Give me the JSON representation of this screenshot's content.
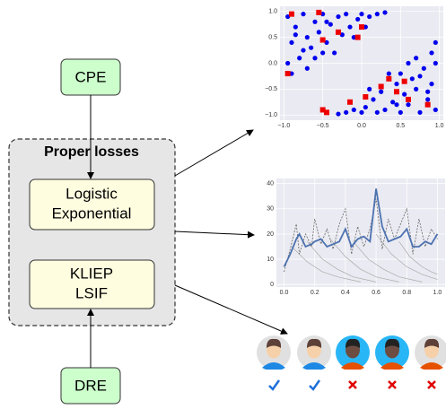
{
  "nodes": {
    "cpe": "CPE",
    "dre": "DRE",
    "group": "Proper losses",
    "cpe_losses": [
      "Logistic",
      "Exponential"
    ],
    "dre_losses": [
      "KLIEP",
      "LSIF"
    ]
  },
  "chart_data": [
    {
      "type": "scatter",
      "xlim": [
        -1.05,
        1.05
      ],
      "ylim": [
        -1.1,
        1.1
      ],
      "xticks": [
        {
          "value": -1,
          "label": "−1.0"
        },
        {
          "value": -0.5,
          "label": "−0.5"
        },
        {
          "value": 0,
          "label": "0.0"
        },
        {
          "value": 0.5,
          "label": "0.5"
        },
        {
          "value": 1,
          "label": "1.0"
        }
      ],
      "yticks": [
        {
          "value": 1,
          "label": "1.0"
        },
        {
          "value": 0.5,
          "label": "0.5"
        },
        {
          "value": 0,
          "label": "0.0"
        },
        {
          "value": -0.5,
          "label": "−0.5"
        },
        {
          "value": -1,
          "label": "−1.0"
        }
      ],
      "grid": true,
      "series": [
        {
          "color": "#0000ee",
          "marker": "circle",
          "x": [
            -0.95,
            -0.85,
            -0.9,
            -0.75,
            -0.7,
            -0.6,
            -0.65,
            -0.55,
            -0.5,
            -0.45,
            -0.4,
            -0.35,
            -0.3,
            -0.25,
            -0.2,
            -0.15,
            -0.1,
            -0.05,
            0.0,
            0.05,
            0.1,
            0.2,
            0.3,
            -0.8,
            -0.95,
            -0.9,
            -0.7,
            -0.6,
            -0.85,
            -0.75,
            -0.5,
            -0.45,
            0.95,
            0.85,
            0.9,
            0.75,
            0.7,
            0.6,
            0.65,
            0.55,
            0.5,
            0.45,
            0.4,
            0.35,
            0.3,
            0.25,
            0.2,
            0.15,
            0.1,
            0.05,
            0.0,
            -0.1,
            -0.2,
            -0.3,
            0.8,
            0.95,
            0.9,
            0.7,
            0.6,
            0.85,
            0.75,
            0.5,
            0.45,
            0.95
          ],
          "values": [
            0.9,
            0.7,
            0.4,
            0.95,
            0.5,
            0.8,
            0.3,
            0.6,
            0.95,
            0.4,
            0.75,
            0.2,
            0.9,
            0.55,
            0.95,
            0.7,
            0.5,
            0.85,
            0.95,
            0.7,
            0.9,
            0.95,
            0.98,
            0.1,
            0.0,
            -0.2,
            -0.1,
            0.1,
            0.55,
            0.25,
            0.2,
            0.8,
            -0.9,
            -0.7,
            -0.4,
            -0.95,
            -0.5,
            -0.8,
            -0.3,
            -0.6,
            -0.95,
            -0.4,
            -0.75,
            -0.2,
            -0.9,
            -0.55,
            -0.95,
            -0.7,
            -0.5,
            -0.85,
            -0.95,
            -0.9,
            -0.95,
            -0.98,
            -0.1,
            0.0,
            0.2,
            0.1,
            0.0,
            -0.55,
            -0.25,
            -0.2,
            -0.8,
            0.4
          ]
        },
        {
          "color": "#ee0000",
          "marker": "square",
          "x": [
            -0.55,
            -0.5,
            -0.3,
            -0.05,
            -0.95,
            -0.9,
            0.0,
            0.35,
            0.45,
            0.25,
            -0.15,
            -0.45,
            0.6,
            0.85,
            0.55,
            0.05,
            -0.5
          ],
          "values": [
            0.98,
            0.45,
            0.6,
            0.5,
            -0.2,
            0.95,
            0.7,
            -0.3,
            -0.55,
            -0.45,
            -0.75,
            -0.95,
            -0.7,
            -0.8,
            -0.35,
            -0.65,
            -0.9
          ]
        }
      ]
    },
    {
      "type": "line",
      "xlim": [
        -0.05,
        1.05
      ],
      "ylim": [
        -1,
        42
      ],
      "xticks": [
        {
          "value": 0,
          "label": "0.0"
        },
        {
          "value": 0.2,
          "label": "0.2"
        },
        {
          "value": 0.4,
          "label": "0.4"
        },
        {
          "value": 0.6,
          "label": "0.6"
        },
        {
          "value": 0.8,
          "label": "0.8"
        },
        {
          "value": 1,
          "label": "1.0"
        }
      ],
      "yticks": [
        0,
        10,
        20,
        30,
        40
      ],
      "grid": true,
      "series": [
        {
          "color": "#aaaaaa",
          "style": "solid",
          "x": [
            0.05,
            0.15,
            0.25,
            0.35,
            0.5
          ],
          "values": [
            15,
            9,
            5,
            3,
            1
          ]
        },
        {
          "color": "#aaaaaa",
          "style": "solid",
          "x": [
            0.15,
            0.25,
            0.35,
            0.45,
            0.6
          ],
          "values": [
            17,
            10,
            6,
            3,
            1
          ]
        },
        {
          "color": "#aaaaaa",
          "style": "solid",
          "x": [
            0.3,
            0.4,
            0.5,
            0.6,
            0.75
          ],
          "values": [
            18,
            11,
            6,
            3,
            1
          ]
        },
        {
          "color": "#aaaaaa",
          "style": "solid",
          "x": [
            0.45,
            0.55,
            0.65,
            0.75,
            0.9
          ],
          "values": [
            17,
            10,
            6,
            3,
            1
          ]
        },
        {
          "color": "#aaaaaa",
          "style": "solid",
          "x": [
            0.6,
            0.7,
            0.8,
            0.9,
            1.0
          ],
          "values": [
            20,
            12,
            7,
            4,
            2
          ]
        },
        {
          "color": "#aaaaaa",
          "style": "solid",
          "x": [
            0.75,
            0.82,
            0.9,
            0.96,
            1.0
          ],
          "values": [
            17,
            11,
            7,
            5,
            4
          ]
        },
        {
          "color": "#666666",
          "style": "dashed",
          "x": [
            0.0,
            0.04,
            0.08,
            0.1,
            0.14,
            0.18,
            0.2,
            0.24,
            0.28,
            0.32,
            0.36,
            0.4,
            0.44,
            0.48,
            0.52,
            0.56,
            0.6,
            0.64,
            0.68,
            0.72,
            0.76,
            0.8,
            0.84,
            0.88,
            0.92,
            0.96,
            1.0
          ],
          "values": [
            5,
            14,
            24,
            12,
            20,
            15,
            26,
            16,
            22,
            14,
            24,
            30,
            12,
            23,
            15,
            22,
            34,
            14,
            26,
            18,
            24,
            30,
            12,
            26,
            15,
            22,
            18
          ]
        },
        {
          "color": "#4c72b0",
          "style": "solid",
          "x": [
            0.0,
            0.04,
            0.08,
            0.1,
            0.14,
            0.18,
            0.2,
            0.24,
            0.28,
            0.32,
            0.36,
            0.4,
            0.44,
            0.48,
            0.52,
            0.56,
            0.6,
            0.64,
            0.68,
            0.72,
            0.76,
            0.8,
            0.84,
            0.88,
            0.92,
            0.96,
            1.0
          ],
          "values": [
            7,
            12,
            18,
            20,
            15,
            16,
            17,
            18,
            15,
            16,
            17,
            22,
            15,
            18,
            19,
            17,
            38,
            23,
            17,
            18,
            19,
            22,
            15,
            15,
            17,
            16,
            20
          ]
        }
      ]
    }
  ]
}
